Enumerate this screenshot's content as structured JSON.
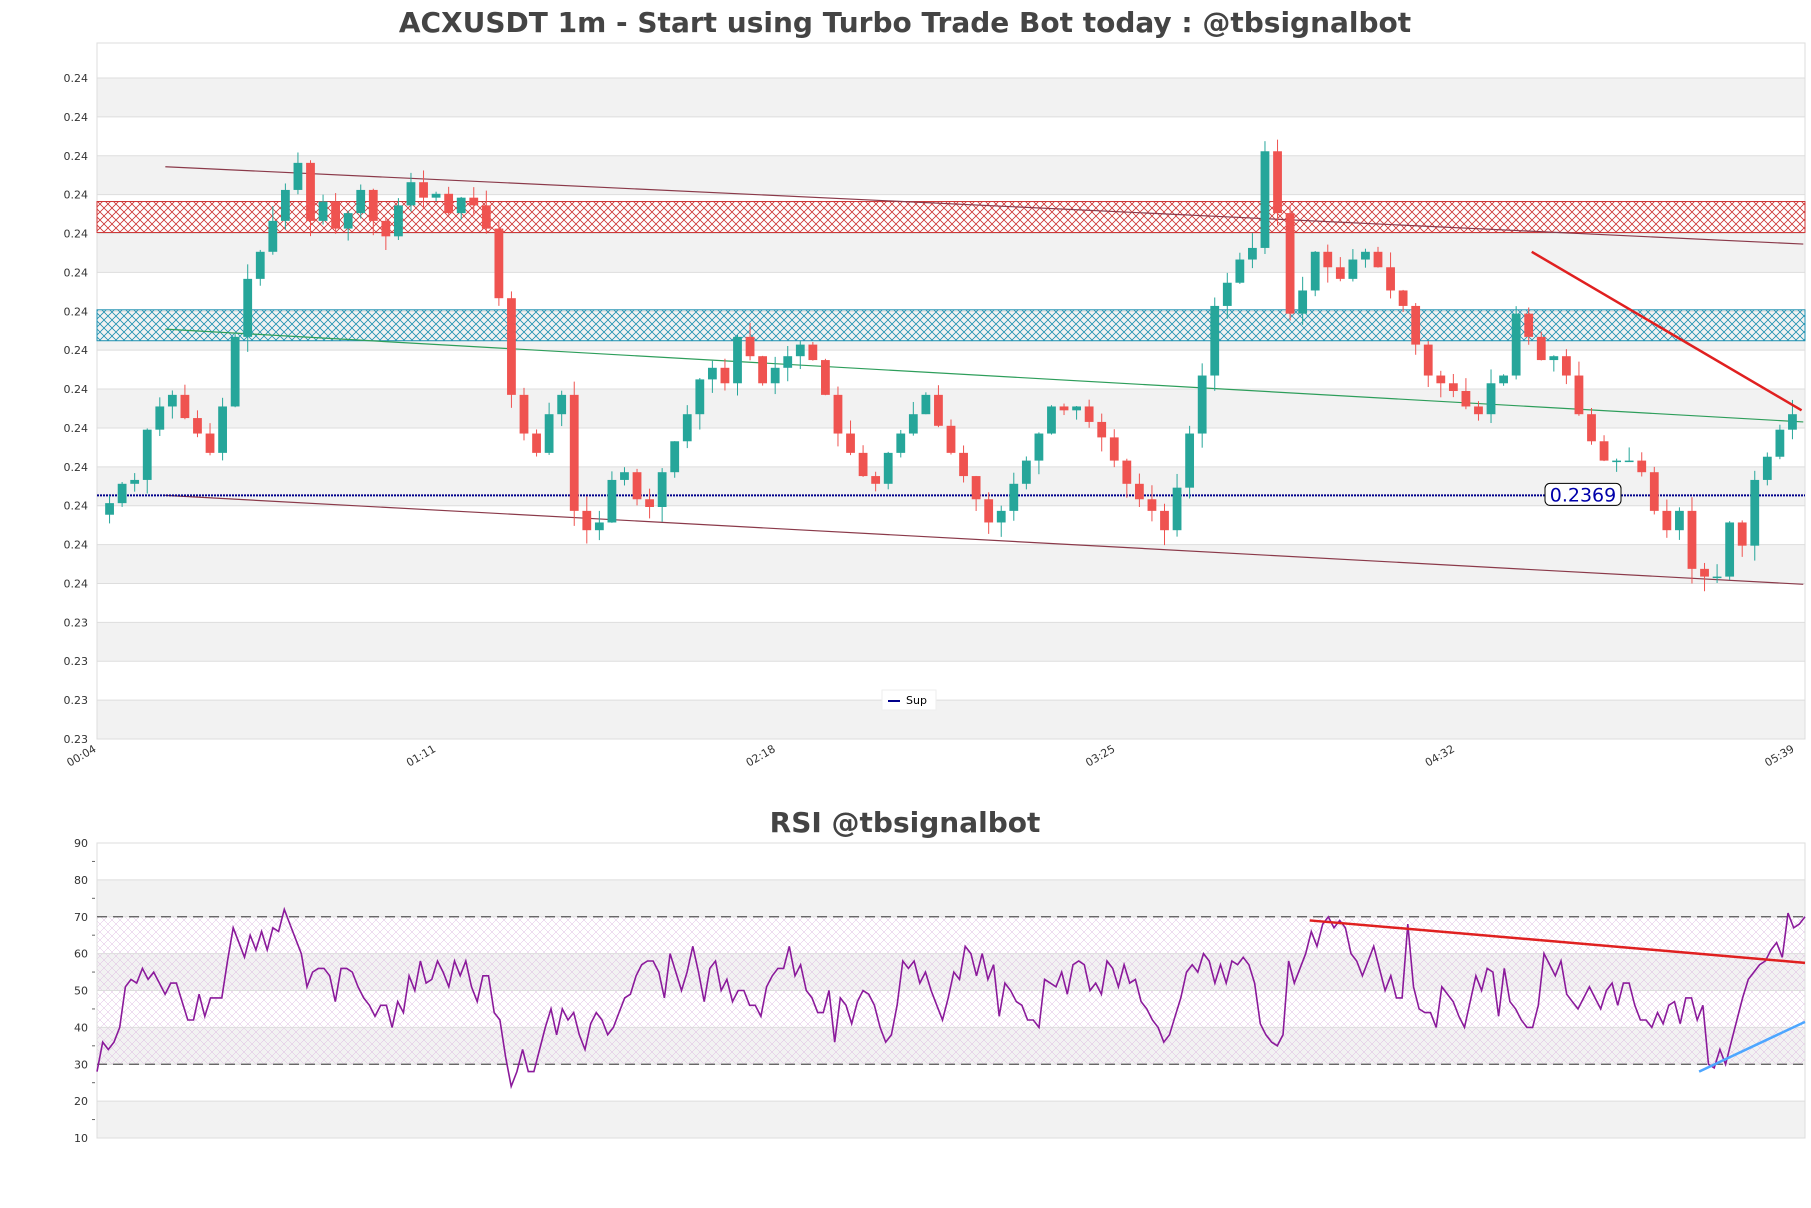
{
  "chart_data": [
    {
      "type": "candlestick",
      "title": "ACXUSDT 1m - Start using Turbo Trade Bot today : @tbsignalbot",
      "y_tick_labels": [
        "0.23",
        "0.23",
        "0.23",
        "0.23",
        "0.24",
        "0.24",
        "0.24",
        "0.24",
        "0.24",
        "0.24",
        "0.24",
        "0.24",
        "0.24",
        "0.24",
        "0.24",
        "0.24",
        "0.24",
        "0.24"
      ],
      "ylim": [
        0.2306,
        0.2486
      ],
      "x_tick_labels": [
        "00:04",
        "01:11",
        "02:18",
        "03:25",
        "04:32",
        "05:39"
      ],
      "support_level": 0.2369,
      "support_label": "0.2369",
      "legend": [
        {
          "name": "Sup",
          "color": "#00008b"
        }
      ],
      "legend_position": "bottom-center",
      "grid": true,
      "resistance_zone": [
        0.2437,
        0.2445
      ],
      "support_zone": [
        0.2409,
        0.2417
      ],
      "close_series": [
        0.2367,
        0.2372,
        0.2373,
        0.2386,
        0.2392,
        0.2395,
        0.2389,
        0.2385,
        0.238,
        0.2392,
        0.241,
        0.2425,
        0.2432,
        0.244,
        0.2448,
        0.2455,
        0.244,
        0.2445,
        0.2438,
        0.2442,
        0.2448,
        0.244,
        0.2436,
        0.2444,
        0.245,
        0.2446,
        0.2447,
        0.2442,
        0.2446,
        0.2444,
        0.2438,
        0.242,
        0.2395,
        0.2385,
        0.238,
        0.239,
        0.2395,
        0.2365,
        0.236,
        0.2362,
        0.2373,
        0.2375,
        0.2368,
        0.2366,
        0.2375,
        0.2383,
        0.239,
        0.2399,
        0.2402,
        0.2398,
        0.241,
        0.2405,
        0.2398,
        0.2402,
        0.2405,
        0.2408,
        0.2404,
        0.2395,
        0.2385,
        0.238,
        0.2374,
        0.2372,
        0.238,
        0.2385,
        0.239,
        0.2395,
        0.2387,
        0.238,
        0.2374,
        0.2368,
        0.2362,
        0.2365,
        0.2372,
        0.2378,
        0.2385,
        0.2392,
        0.2391,
        0.2392,
        0.2388,
        0.2384,
        0.2378,
        0.2372,
        0.2368,
        0.2365,
        0.236,
        0.2371,
        0.2385,
        0.24,
        0.2418,
        0.2424,
        0.243,
        0.2433,
        0.2458,
        0.2442,
        0.2416,
        0.2422,
        0.2432,
        0.2428,
        0.2425,
        0.243,
        0.2432,
        0.2428,
        0.2422,
        0.2418,
        0.2408,
        0.24,
        0.2398,
        0.2396,
        0.2392,
        0.239,
        0.2398,
        0.24,
        0.2416,
        0.241,
        0.2404,
        0.2405,
        0.24,
        0.239,
        0.2383,
        0.2378,
        0.2378,
        0.2378,
        0.2375,
        0.2365,
        0.236,
        0.2365,
        0.235,
        0.2348,
        0.2348,
        0.2362,
        0.2356,
        0.2373,
        0.2379,
        0.2386,
        0.239
      ],
      "resistance_trend": [
        {
          "x": 0.04,
          "y": 0.2454
        },
        {
          "x": 0.999,
          "y": 0.2434
        }
      ],
      "support_trend": [
        {
          "x": 0.04,
          "y": 0.2369
        },
        {
          "x": 0.999,
          "y": 0.2346
        }
      ],
      "mid_trend": [
        {
          "x": 0.04,
          "y": 0.2412
        },
        {
          "x": 0.999,
          "y": 0.2388
        }
      ],
      "short_resistance_trend": [
        {
          "x": 0.84,
          "y": 0.2432
        },
        {
          "x": 0.998,
          "y": 0.2391
        }
      ]
    },
    {
      "type": "line",
      "title": "RSI @tbsignalbot",
      "ylim": [
        10,
        90
      ],
      "y_ticks": [
        10,
        20,
        30,
        40,
        50,
        60,
        70,
        80,
        90
      ],
      "overbought": 70,
      "oversold": 30,
      "line_color": "#8b1a9b",
      "grid": true,
      "rsi_values": [
        28,
        36,
        34,
        36,
        40,
        51,
        53,
        52,
        56,
        53,
        55,
        52,
        49,
        52,
        52,
        47,
        42,
        42,
        49,
        43,
        48,
        48,
        48,
        58,
        67,
        63,
        59,
        65,
        61,
        66,
        61,
        67,
        66,
        72,
        68,
        64,
        60,
        51,
        55,
        56,
        56,
        54,
        47,
        56,
        56,
        55,
        51,
        48,
        46,
        43,
        46,
        46,
        40,
        47,
        44,
        54,
        50,
        58,
        52,
        53,
        58,
        55,
        51,
        58,
        54,
        58,
        51,
        47,
        54,
        54,
        44,
        42,
        32,
        24,
        28,
        34,
        28,
        28,
        34,
        40,
        45,
        38,
        45,
        42,
        44,
        38,
        34,
        41,
        44,
        42,
        38,
        40,
        44,
        48,
        49,
        54,
        57,
        58,
        58,
        55,
        48,
        60,
        55,
        50,
        55,
        62,
        55,
        47,
        56,
        58,
        50,
        53,
        47,
        50,
        50,
        46,
        46,
        43,
        51,
        54,
        56,
        56,
        62,
        54,
        57,
        50,
        48,
        44,
        44,
        50,
        36,
        48,
        46,
        41,
        47,
        50,
        49,
        46,
        40,
        36,
        38,
        46,
        58,
        56,
        58,
        52,
        55,
        50,
        46,
        42,
        48,
        55,
        53,
        62,
        60,
        54,
        60,
        53,
        57,
        43,
        52,
        50,
        47,
        46,
        42,
        42,
        40,
        53,
        52,
        51,
        55,
        49,
        57,
        58,
        57,
        50,
        52,
        49,
        58,
        56,
        51,
        57,
        52,
        53,
        47,
        45,
        42,
        40,
        36,
        38,
        43,
        48,
        55,
        57,
        55,
        60,
        58,
        52,
        57,
        52,
        58,
        57,
        59,
        57,
        52,
        41,
        38,
        36,
        35,
        38,
        58,
        52,
        56,
        60,
        66,
        62,
        68,
        70,
        67,
        69,
        67,
        60,
        58,
        54,
        58,
        62,
        56,
        50,
        54,
        48,
        48,
        68,
        51,
        45,
        44,
        44,
        40,
        51,
        49,
        47,
        43,
        40,
        47,
        54,
        50,
        56,
        55,
        43,
        56,
        47,
        45,
        42,
        40,
        40,
        46,
        60,
        57,
        54,
        58,
        49,
        47,
        45,
        48,
        51,
        48,
        45,
        50,
        52,
        46,
        52,
        52,
        46,
        42,
        42,
        40,
        44,
        41,
        46,
        47,
        41,
        48,
        48,
        42,
        46,
        30,
        29,
        34,
        30,
        36,
        42,
        48,
        53,
        55,
        57,
        58,
        61,
        63,
        59,
        71,
        67,
        68,
        70
      ],
      "resistance_trend": [
        {
          "x": 0.71,
          "y": 69
        },
        {
          "x": 1.0,
          "y": 57.5
        }
      ],
      "support_trend": [
        {
          "x": 0.938,
          "y": 28
        },
        {
          "x": 1.0,
          "y": 41.5
        }
      ]
    }
  ],
  "colors": {
    "up": "#26a69a",
    "down": "#ef5350",
    "support_line": "#00008b",
    "resistance_zone": "#cc3333",
    "support_zone": "#1e90b0",
    "channel": "#8b3a4a",
    "mid_trend": "#2e9e5b",
    "short_trend": "#e02020",
    "rsi_support_trend": "#4da6ff",
    "rsi_resistance_trend": "#e02020"
  }
}
